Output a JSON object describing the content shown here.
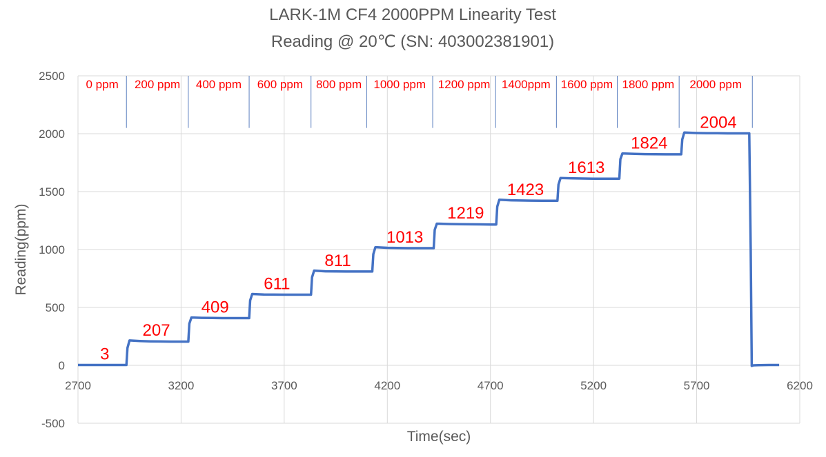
{
  "chart_data": {
    "type": "line",
    "title": "LARK-1M CF4 2000PPM Linearity Test",
    "subtitle": "Reading @ 20℃ (SN: 403002381901)",
    "xlabel": "Time(sec)",
    "ylabel": "Reading(ppm)",
    "xlim": [
      2700,
      6200
    ],
    "ylim": [
      -500,
      2500
    ],
    "xticks": [
      "2700",
      "3200",
      "3700",
      "4200",
      "4700",
      "5200",
      "5700",
      "6200"
    ],
    "yticks": [
      "2500",
      "2000",
      "1500",
      "1000",
      "500",
      "0",
      "-500"
    ],
    "grid": true,
    "legend": "none",
    "series_color": "#4472c4",
    "label_color": "#ff0000",
    "concentration_labels": [
      {
        "text": "0 ppm",
        "x_start": 2700,
        "x_end": 2935
      },
      {
        "text": "200 ppm",
        "x_start": 2935,
        "x_end": 3235
      },
      {
        "text": "400 ppm",
        "x_start": 3235,
        "x_end": 3530
      },
      {
        "text": "600 ppm",
        "x_start": 3530,
        "x_end": 3830
      },
      {
        "text": "800 ppm",
        "x_start": 3830,
        "x_end": 4100
      },
      {
        "text": "1000 ppm",
        "x_start": 4100,
        "x_end": 4420
      },
      {
        "text": "1200 ppm",
        "x_start": 4420,
        "x_end": 4725
      },
      {
        "text": "1400ppm",
        "x_start": 4725,
        "x_end": 5020
      },
      {
        "text": "1600 ppm",
        "x_start": 5020,
        "x_end": 5315
      },
      {
        "text": "1800 ppm",
        "x_start": 5315,
        "x_end": 5615
      },
      {
        "text": "2000 ppm",
        "x_start": 5615,
        "x_end": 5970
      }
    ],
    "step_values": [
      {
        "text": "3",
        "x": 2830,
        "y": 3
      },
      {
        "text": "207",
        "x": 3080,
        "y": 207
      },
      {
        "text": "409",
        "x": 3365,
        "y": 409
      },
      {
        "text": "611",
        "x": 3665,
        "y": 611
      },
      {
        "text": "811",
        "x": 3960,
        "y": 811
      },
      {
        "text": "1013",
        "x": 4285,
        "y": 1013
      },
      {
        "text": "1219",
        "x": 4580,
        "y": 1219
      },
      {
        "text": "1423",
        "x": 4870,
        "y": 1423
      },
      {
        "text": "1613",
        "x": 5165,
        "y": 1613
      },
      {
        "text": "1824",
        "x": 5470,
        "y": 1824
      },
      {
        "text": "2004",
        "x": 5805,
        "y": 2004
      }
    ],
    "series": [
      {
        "x": [
          2700,
          2935,
          2940,
          2950,
          3000,
          3050,
          3100,
          3150,
          3200,
          3235,
          3240,
          3250,
          3300,
          3350,
          3400,
          3450,
          3500,
          3530,
          3535,
          3545,
          3600,
          3650,
          3700,
          3750,
          3800,
          3830,
          3835,
          3845,
          3900,
          3950,
          4000,
          4050,
          4100,
          4127,
          4132,
          4142,
          4200,
          4250,
          4300,
          4350,
          4400,
          4425,
          4430,
          4440,
          4500,
          4550,
          4600,
          4650,
          4700,
          4728,
          4733,
          4743,
          4800,
          4850,
          4900,
          4950,
          5000,
          5025,
          5030,
          5040,
          5100,
          5150,
          5200,
          5250,
          5300,
          5325,
          5330,
          5340,
          5400,
          5450,
          5500,
          5550,
          5600,
          5625,
          5630,
          5640,
          5700,
          5750,
          5800,
          5850,
          5900,
          5955,
          5962,
          5967,
          5975,
          6000,
          6050,
          6100
        ],
        "y": [
          3,
          3,
          150,
          215,
          210,
          207,
          206,
          205,
          205,
          205,
          360,
          413,
          410,
          409,
          408,
          408,
          408,
          408,
          560,
          616,
          612,
          611,
          610,
          610,
          610,
          610,
          760,
          818,
          812,
          811,
          810,
          810,
          810,
          810,
          960,
          1020,
          1015,
          1013,
          1012,
          1012,
          1012,
          1012,
          1170,
          1223,
          1220,
          1219,
          1218,
          1217,
          1216,
          1216,
          1370,
          1430,
          1425,
          1423,
          1422,
          1421,
          1421,
          1421,
          1560,
          1618,
          1615,
          1613,
          1612,
          1612,
          1612,
          1612,
          1780,
          1830,
          1826,
          1824,
          1823,
          1822,
          1822,
          1822,
          1950,
          2010,
          2006,
          2004,
          2004,
          2003,
          2003,
          2003,
          1000,
          -5,
          0,
          2,
          3,
          3
        ]
      }
    ]
  }
}
